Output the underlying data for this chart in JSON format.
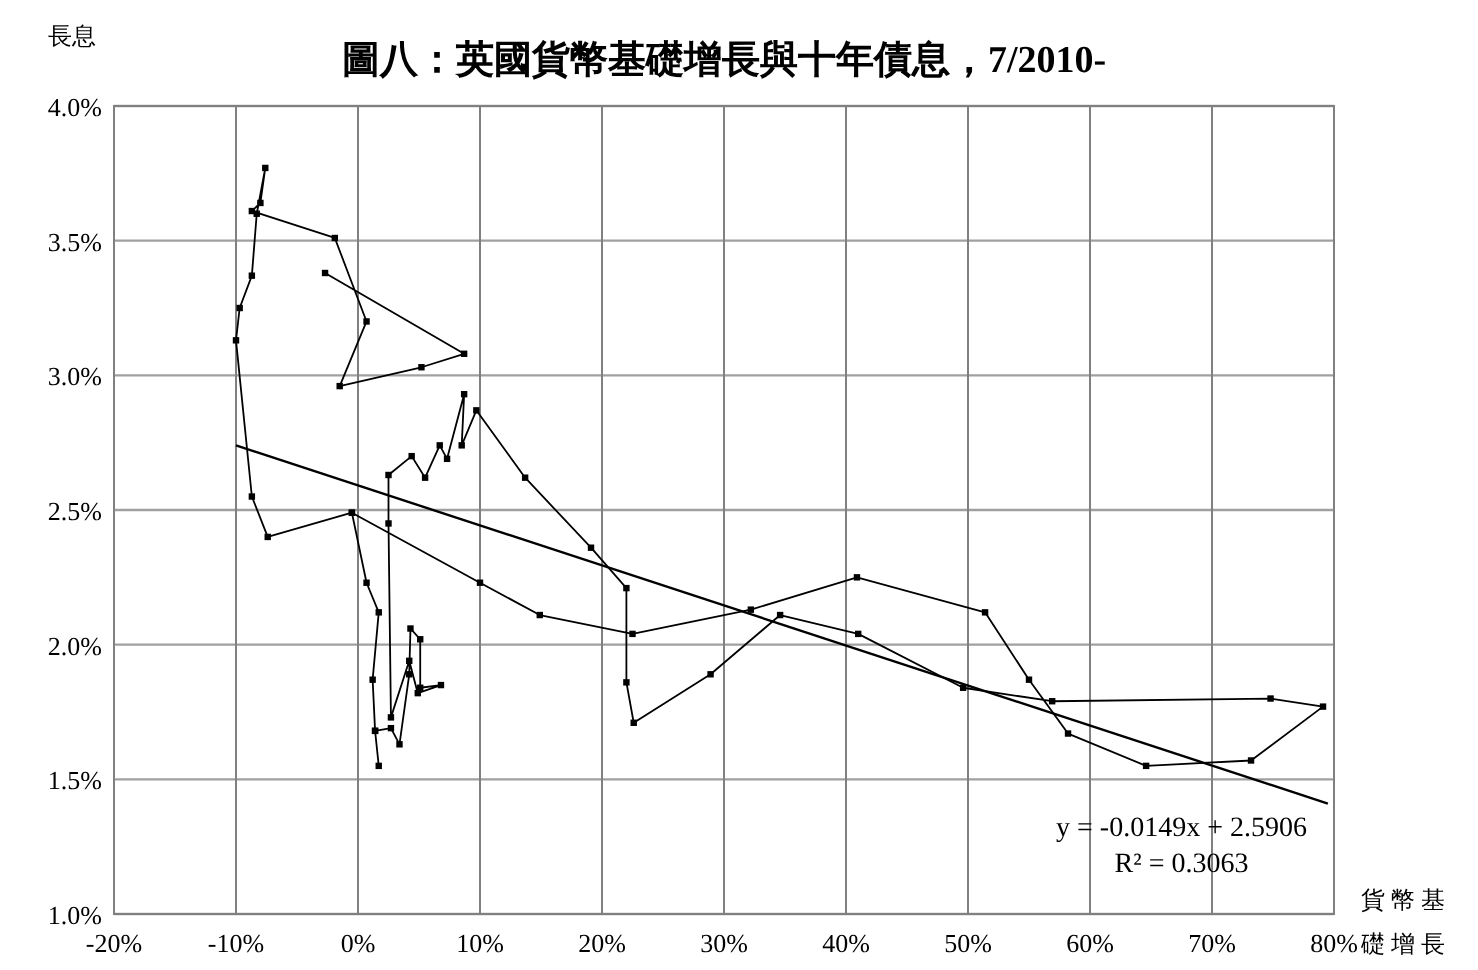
{
  "chart_data": {
    "type": "line",
    "title": "圖八：英國貨幣基礎增長與十年債息，7/2010-",
    "xlabel": "貨幣基礎增長",
    "ylabel": "長息",
    "xlim": [
      -20,
      80
    ],
    "ylim": [
      1,
      4
    ],
    "xticks": [
      {
        "value": -20,
        "label": "-20%"
      },
      {
        "value": -10,
        "label": "-10%"
      },
      {
        "value": 0,
        "label": "0%"
      },
      {
        "value": 10,
        "label": "10%"
      },
      {
        "value": 20,
        "label": "20%"
      },
      {
        "value": 30,
        "label": "30%"
      },
      {
        "value": 40,
        "label": "40%"
      },
      {
        "value": 50,
        "label": "50%"
      },
      {
        "value": 60,
        "label": "60%"
      },
      {
        "value": 70,
        "label": "70%"
      },
      {
        "value": 80,
        "label": "80%"
      }
    ],
    "yticks": [
      {
        "value": 1,
        "label": "1.0%"
      },
      {
        "value": 1.5,
        "label": "1.5%"
      },
      {
        "value": 2,
        "label": "2.0%"
      },
      {
        "value": 2.5,
        "label": "2.5%"
      },
      {
        "value": 3,
        "label": "3.0%"
      },
      {
        "value": 3.5,
        "label": "3.5%"
      },
      {
        "value": 4,
        "label": "4.0%"
      }
    ],
    "grid": true,
    "marker": "square",
    "series": [
      {
        "color": "#000000",
        "x": [
          -2.7,
          8.7,
          5.2,
          -1.5,
          0.7,
          -1.9,
          -8.7,
          -8.0,
          -7.6,
          -8.3,
          -8.7,
          -9.7,
          -10.0,
          -8.7,
          -7.4,
          -0.5,
          0.7,
          1.7,
          1.2,
          1.4,
          1.7,
          1.4,
          2.7,
          3.4,
          4.2,
          4.3,
          5.1,
          5.1,
          6.8,
          4.9,
          4.2,
          2.7,
          2.5,
          2.5,
          4.4,
          5.5,
          6.7,
          7.3,
          8.7,
          8.5,
          9.7,
          13.7,
          19.1,
          22.0,
          22.0,
          22.6,
          28.9,
          34.6,
          41.0,
          49.6,
          56.9,
          74.8,
          79.1,
          73.2,
          64.6,
          58.2,
          55.0,
          51.4,
          40.9,
          32.2,
          22.5,
          14.9,
          10.0,
          -0.5
        ],
        "values": [
          3.38,
          3.08,
          3.03,
          2.96,
          3.2,
          3.51,
          3.61,
          3.64,
          3.77,
          3.6,
          3.37,
          3.25,
          3.13,
          2.55,
          2.4,
          2.49,
          2.23,
          2.12,
          1.87,
          1.68,
          1.55,
          1.68,
          1.69,
          1.63,
          1.89,
          2.06,
          2.02,
          1.84,
          1.85,
          1.82,
          1.94,
          1.73,
          2.45,
          2.63,
          2.7,
          2.62,
          2.74,
          2.69,
          2.93,
          2.74,
          2.87,
          2.62,
          2.36,
          2.21,
          1.86,
          1.71,
          1.89,
          2.11,
          2.04,
          1.84,
          1.79,
          1.8,
          1.77,
          1.57,
          1.55,
          1.67,
          1.87,
          2.12,
          2.25,
          2.13,
          2.04,
          2.11,
          2.23,
          2.49
        ]
      },
      {
        "type": "line",
        "marker": "none",
        "color": "#000000",
        "x": [
          -10,
          79.5
        ],
        "values": [
          2.74,
          1.41
        ]
      }
    ],
    "annotations": [
      "y = -0.0149x + 2.5906",
      "R² = 0.3063"
    ]
  }
}
